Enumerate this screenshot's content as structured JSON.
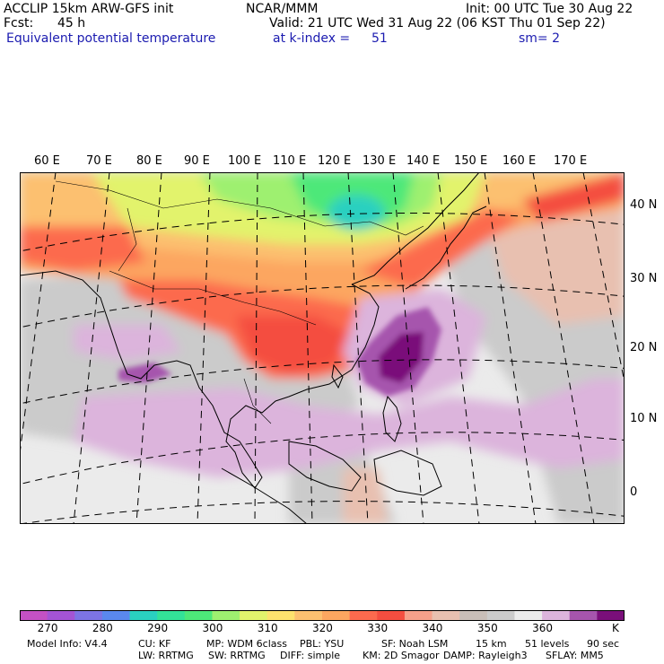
{
  "header": {
    "model": "ACCLIP 15km ARW-GFS init",
    "org": "NCAR/MMM",
    "init": "Init: 00 UTC Tue 30 Aug 22",
    "fcst_label": "Fcst:",
    "fcst_value": "45 h",
    "valid": "Valid: 21 UTC Wed 31 Aug 22 (06 KST Thu 01 Sep 22)",
    "field": "Equivalent potential temperature",
    "level_label": "at k-index =",
    "level_value": "51",
    "smooth": "sm= 2"
  },
  "map": {
    "lon_labels": [
      "60 E",
      "70 E",
      "80 E",
      "90 E",
      "100 E",
      "110 E",
      "120 E",
      "130 E",
      "140 E",
      "150 E",
      "160 E",
      "170 E"
    ],
    "lat_labels": [
      "40 N",
      "30 N",
      "20 N",
      "10 N",
      "0"
    ]
  },
  "colorbar": {
    "colors": [
      "#c451c4",
      "#a454d4",
      "#7d74e4",
      "#5a88ee",
      "#2ad0c0",
      "#33e298",
      "#4de879",
      "#9ef070",
      "#e2f36c",
      "#fde26e",
      "#fcc070",
      "#fca660",
      "#fc6a4e",
      "#f44e40",
      "#f5a08a",
      "#e8c0b0",
      "#c8beb8",
      "#cbcbcb",
      "#ebebeb",
      "#dcb4dc",
      "#a655ad",
      "#7a0f7a"
    ],
    "ticks": [
      "270",
      "280",
      "290",
      "300",
      "310",
      "320",
      "330",
      "340",
      "350",
      "360"
    ],
    "unit": "K"
  },
  "footer": {
    "line1": [
      "Model Info: V4.4",
      "CU: KF",
      "MP: WDM 6class",
      "PBL: YSU",
      "SF: Noah LSM",
      "15 km",
      "51 levels",
      "90 sec"
    ],
    "line2": [
      "LW: RRTMG",
      "SW: RRTMG",
      "DIFF: simple",
      "KM: 2D Smagor",
      "DAMP: Rayleigh3",
      "SFLAY: MM5"
    ]
  }
}
